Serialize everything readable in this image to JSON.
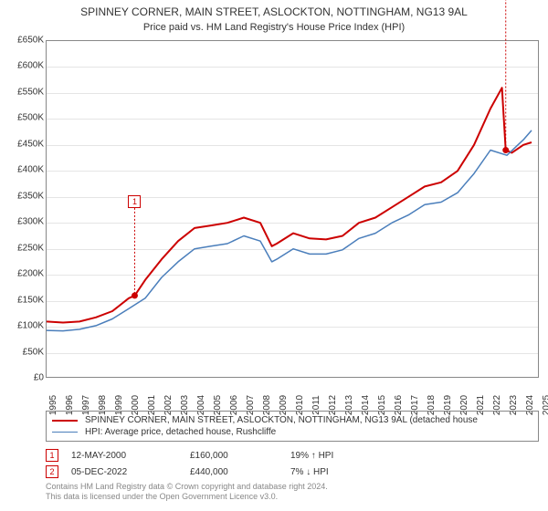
{
  "title": "SPINNEY CORNER, MAIN STREET, ASLOCKTON, NOTTINGHAM, NG13 9AL",
  "subtitle": "Price paid vs. HM Land Registry's House Price Index (HPI)",
  "chart": {
    "type": "line",
    "background_color": "#ffffff",
    "grid_color": "#e5e5e5",
    "border_color": "#888888",
    "x": {
      "min": 1995,
      "max": 2025,
      "ticks": [
        1995,
        1996,
        1997,
        1998,
        1999,
        2000,
        2001,
        2002,
        2003,
        2004,
        2005,
        2006,
        2007,
        2008,
        2009,
        2010,
        2011,
        2012,
        2013,
        2014,
        2015,
        2016,
        2017,
        2018,
        2019,
        2020,
        2021,
        2022,
        2023,
        2024,
        2025
      ],
      "label_fontsize": 10,
      "label_color": "#333333"
    },
    "y": {
      "min": 0,
      "max": 650000,
      "tick_step": 50000,
      "prefix": "£",
      "suffix": "K",
      "divide": 1000,
      "label_fontsize": 10,
      "label_color": "#333333"
    },
    "series": [
      {
        "name": "SPINNEY CORNER, MAIN STREET, ASLOCKTON, NOTTINGHAM, NG13 9AL (detached house",
        "color": "#cc0000",
        "line_width": 2,
        "data": [
          [
            1995,
            110000
          ],
          [
            1996,
            108000
          ],
          [
            1997,
            110000
          ],
          [
            1998,
            118000
          ],
          [
            1999,
            130000
          ],
          [
            2000,
            155000
          ],
          [
            2000.36,
            160000
          ],
          [
            2001,
            190000
          ],
          [
            2002,
            230000
          ],
          [
            2003,
            265000
          ],
          [
            2004,
            290000
          ],
          [
            2005,
            295000
          ],
          [
            2006,
            300000
          ],
          [
            2007,
            310000
          ],
          [
            2008,
            300000
          ],
          [
            2008.7,
            255000
          ],
          [
            2009,
            260000
          ],
          [
            2010,
            280000
          ],
          [
            2011,
            270000
          ],
          [
            2012,
            268000
          ],
          [
            2013,
            275000
          ],
          [
            2014,
            300000
          ],
          [
            2015,
            310000
          ],
          [
            2016,
            330000
          ],
          [
            2017,
            350000
          ],
          [
            2018,
            370000
          ],
          [
            2019,
            378000
          ],
          [
            2020,
            400000
          ],
          [
            2021,
            450000
          ],
          [
            2022,
            520000
          ],
          [
            2022.7,
            560000
          ],
          [
            2022.93,
            440000
          ],
          [
            2023.3,
            435000
          ],
          [
            2024,
            450000
          ],
          [
            2024.5,
            455000
          ]
        ]
      },
      {
        "name": "HPI: Average price, detached house, Rushcliffe",
        "color": "#4a7ebb",
        "line_width": 1.5,
        "data": [
          [
            1995,
            93000
          ],
          [
            1996,
            92000
          ],
          [
            1997,
            95000
          ],
          [
            1998,
            102000
          ],
          [
            1999,
            115000
          ],
          [
            2000,
            135000
          ],
          [
            2001,
            155000
          ],
          [
            2002,
            195000
          ],
          [
            2003,
            225000
          ],
          [
            2004,
            250000
          ],
          [
            2005,
            255000
          ],
          [
            2006,
            260000
          ],
          [
            2007,
            275000
          ],
          [
            2008,
            265000
          ],
          [
            2008.7,
            225000
          ],
          [
            2009,
            230000
          ],
          [
            2010,
            250000
          ],
          [
            2011,
            240000
          ],
          [
            2012,
            240000
          ],
          [
            2013,
            248000
          ],
          [
            2014,
            270000
          ],
          [
            2015,
            280000
          ],
          [
            2016,
            300000
          ],
          [
            2017,
            315000
          ],
          [
            2018,
            335000
          ],
          [
            2019,
            340000
          ],
          [
            2020,
            358000
          ],
          [
            2021,
            395000
          ],
          [
            2022,
            440000
          ],
          [
            2023,
            430000
          ],
          [
            2024,
            460000
          ],
          [
            2024.5,
            478000
          ]
        ]
      }
    ],
    "markers": [
      {
        "n": "1",
        "x": 2000.36,
        "y": 160000,
        "color": "#cc0000",
        "box_y_offset": -110
      },
      {
        "n": "2",
        "x": 2022.93,
        "y": 440000,
        "color": "#cc0000",
        "box_y_offset": -220
      }
    ]
  },
  "legend": {
    "border_color": "#888888",
    "fontsize": 10,
    "items": [
      {
        "color": "#cc0000",
        "width": 2,
        "label": "SPINNEY CORNER, MAIN STREET, ASLOCKTON, NOTTINGHAM, NG13 9AL (detached house"
      },
      {
        "color": "#4a7ebb",
        "width": 1.5,
        "label": "HPI: Average price, detached house, Rushcliffe"
      }
    ]
  },
  "marker_table": {
    "fontsize": 10,
    "rows": [
      {
        "n": "1",
        "color": "#cc0000",
        "date": "12-MAY-2000",
        "price": "£160,000",
        "delta": "19% ↑ HPI"
      },
      {
        "n": "2",
        "color": "#cc0000",
        "date": "05-DEC-2022",
        "price": "£440,000",
        "delta": "7% ↓ HPI"
      }
    ]
  },
  "footnote": {
    "line1": "Contains HM Land Registry data © Crown copyright and database right 2024.",
    "line2": "This data is licensed under the Open Government Licence v3.0.",
    "color": "#888888",
    "fontsize": 9
  }
}
